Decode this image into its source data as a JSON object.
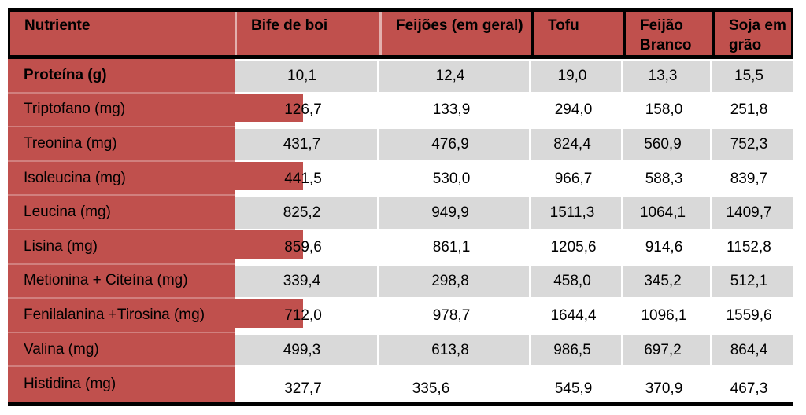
{
  "table": {
    "columns": [
      "Nutriente",
      "Bife de boi",
      "Feijões (em geral)",
      "Tofu",
      "Feijão Branco",
      "Soja em grão"
    ],
    "rows": [
      {
        "label": "Proteína (g)",
        "values": [
          "10,1",
          "12,4",
          "19,0",
          "13,3",
          "15,5"
        ]
      },
      {
        "label": "Triptofano (mg)",
        "values": [
          "126,7",
          "133,9",
          "294,0",
          "158,0",
          "251,8"
        ]
      },
      {
        "label": "Treonina (mg)",
        "values": [
          "431,7",
          "476,9",
          "824,4",
          "560,9",
          "752,3"
        ]
      },
      {
        "label": "Isoleucina (mg)",
        "values": [
          "441,5",
          "530,0",
          "966,7",
          "588,3",
          "839,7"
        ]
      },
      {
        "label": "Leucina (mg)",
        "values": [
          "825,2",
          "949,9",
          "1511,3",
          "1064,1",
          "1409,7"
        ]
      },
      {
        "label": "Lisina (mg)",
        "values": [
          "859,6",
          "861,1",
          "1205,6",
          "914,6",
          "1152,8"
        ]
      },
      {
        "label": "Metionina + Citeína (mg)",
        "values": [
          "339,4",
          "298,8",
          "458,0",
          "345,2",
          "512,1"
        ]
      },
      {
        "label": "Fenilalanina +Tirosina (mg)",
        "values": [
          "712,0",
          "978,7",
          "1644,4",
          "1096,1",
          "1559,6"
        ]
      },
      {
        "label": "Valina (mg)",
        "values": [
          "499,3",
          "613,8",
          "986,5",
          "697,2",
          "864,4"
        ]
      },
      {
        "label": "Histidina (mg)",
        "values": [
          "327,7",
          "335,6",
          "545,9",
          "370,9",
          "467,3"
        ]
      }
    ]
  },
  "colors": {
    "header_and_bar_red": "#C0504D",
    "alt_row_gray": "#D9D9D9",
    "border_black": "#000000"
  },
  "chart_data": {
    "type": "table",
    "title": "",
    "categories": [
      "Bife de boi",
      "Feijões (em geral)",
      "Tofu",
      "Feijão Branco",
      "Soja em grão"
    ],
    "row_header": "Nutriente",
    "rows": [
      {
        "nutrient": "Proteína (g)",
        "values": [
          10.1,
          12.4,
          19.0,
          13.3,
          15.5
        ]
      },
      {
        "nutrient": "Triptofano (mg)",
        "values": [
          126.7,
          133.9,
          294.0,
          158.0,
          251.8
        ]
      },
      {
        "nutrient": "Treonina (mg)",
        "values": [
          431.7,
          476.9,
          824.4,
          560.9,
          752.3
        ]
      },
      {
        "nutrient": "Isoleucina (mg)",
        "values": [
          441.5,
          530.0,
          966.7,
          588.3,
          839.7
        ]
      },
      {
        "nutrient": "Leucina (mg)",
        "values": [
          825.2,
          949.9,
          1511.3,
          1064.1,
          1409.7
        ]
      },
      {
        "nutrient": "Lisina (mg)",
        "values": [
          859.6,
          861.1,
          1205.6,
          914.6,
          1152.8
        ]
      },
      {
        "nutrient": "Metionina + Citeína (mg)",
        "values": [
          339.4,
          298.8,
          458.0,
          345.2,
          512.1
        ]
      },
      {
        "nutrient": "Fenilalanina +Tirosina (mg)",
        "values": [
          712.0,
          978.7,
          1644.4,
          1096.1,
          1559.6
        ]
      },
      {
        "nutrient": "Valina (mg)",
        "values": [
          499.3,
          613.8,
          986.5,
          697.2,
          864.4
        ]
      },
      {
        "nutrient": "Histidina (mg)",
        "values": [
          327.7,
          335.6,
          545.9,
          370.9,
          467.3
        ]
      }
    ],
    "decimal_separator": ",",
    "layout": {
      "first_column_background": "red",
      "alternating_rows": "gray/white",
      "grid": "partial"
    }
  }
}
